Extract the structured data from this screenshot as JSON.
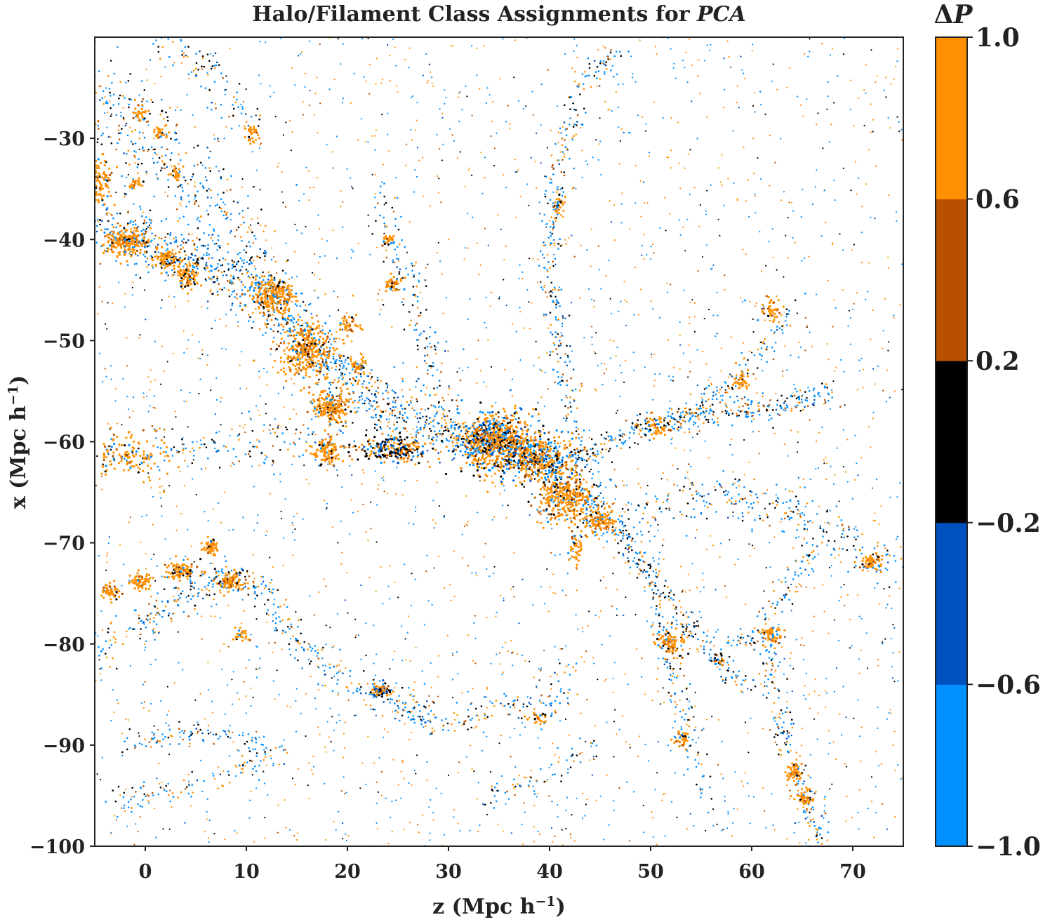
{
  "chart_data": {
    "type": "scatter",
    "title_main": "Halo/Filament Class Assignments for ",
    "title_italic": "PCA",
    "xlabel": "z (Mpc h",
    "xlabel_sup": "−1",
    "xlabel_close": ")",
    "ylabel": "x (Mpc h",
    "ylabel_sup": "−1",
    "ylabel_close": ")",
    "xlim": [
      -5,
      75
    ],
    "ylim": [
      -100,
      -20
    ],
    "xticks": [
      0,
      10,
      20,
      30,
      40,
      50,
      60,
      70
    ],
    "xtick_labels": [
      "0",
      "10",
      "20",
      "30",
      "40",
      "50",
      "60",
      "70"
    ],
    "yticks": [
      -30,
      -40,
      -50,
      -60,
      -70,
      -80,
      -90,
      -100
    ],
    "ytick_labels": [
      "−30",
      "−40",
      "−50",
      "−60",
      "−70",
      "−80",
      "−90",
      "−100"
    ],
    "colorbar": {
      "title_prefix": "Δ",
      "title_var": "P",
      "bounds": [
        -1.0,
        -0.6,
        -0.2,
        0.2,
        0.6,
        1.0
      ],
      "tick_labels": [
        "−1.0",
        "−0.6",
        "−0.2",
        "0.2",
        "0.6",
        "1.0"
      ],
      "colors": [
        "#0090ff",
        "#0050c0",
        "#000000",
        "#b85000",
        "#ff9000"
      ]
    },
    "clusters": [
      {
        "x": 12.5,
        "y": -45.5,
        "sx": 1.3,
        "sy": 1.0,
        "n": 240,
        "mix": "orange"
      },
      {
        "x": 16.0,
        "y": -51.0,
        "sx": 1.8,
        "sy": 1.6,
        "n": 320,
        "mix": "orange"
      },
      {
        "x": 18.5,
        "y": -56.5,
        "sx": 1.2,
        "sy": 1.0,
        "n": 200,
        "mix": "orange"
      },
      {
        "x": 34.5,
        "y": -60.0,
        "sx": 2.4,
        "sy": 1.8,
        "n": 700,
        "mix": "center"
      },
      {
        "x": 39.0,
        "y": -61.5,
        "sx": 2.2,
        "sy": 1.4,
        "n": 350,
        "mix": "center"
      },
      {
        "x": 41.5,
        "y": -65.5,
        "sx": 1.6,
        "sy": 1.6,
        "n": 300,
        "mix": "orange"
      },
      {
        "x": 45.0,
        "y": -67.8,
        "sx": 1.0,
        "sy": 0.7,
        "n": 110,
        "mix": "orange"
      },
      {
        "x": 24.5,
        "y": -60.8,
        "sx": 2.2,
        "sy": 0.8,
        "n": 240,
        "mix": "dark"
      },
      {
        "x": 18.0,
        "y": -61.0,
        "sx": 0.9,
        "sy": 0.8,
        "n": 110,
        "mix": "orange"
      },
      {
        "x": -2.0,
        "y": -40.2,
        "sx": 1.4,
        "sy": 0.8,
        "n": 220,
        "mix": "orange"
      },
      {
        "x": 2.0,
        "y": -42.0,
        "sx": 0.8,
        "sy": 0.7,
        "n": 80,
        "mix": "orange"
      },
      {
        "x": 4.0,
        "y": -43.5,
        "sx": 0.8,
        "sy": 0.8,
        "n": 80,
        "mix": "orange"
      },
      {
        "x": -4.5,
        "y": -34.5,
        "sx": 0.8,
        "sy": 1.5,
        "n": 110,
        "mix": "orange"
      },
      {
        "x": 3.5,
        "y": -72.8,
        "sx": 0.9,
        "sy": 0.6,
        "n": 100,
        "mix": "orange"
      },
      {
        "x": -0.5,
        "y": -73.8,
        "sx": 0.7,
        "sy": 0.6,
        "n": 70,
        "mix": "orange"
      },
      {
        "x": 8.5,
        "y": -73.8,
        "sx": 0.9,
        "sy": 0.6,
        "n": 90,
        "mix": "orange"
      },
      {
        "x": -3.5,
        "y": -74.8,
        "sx": 0.6,
        "sy": 0.5,
        "n": 50,
        "mix": "orange"
      },
      {
        "x": 6.5,
        "y": -70.5,
        "sx": 0.6,
        "sy": 0.6,
        "n": 50,
        "mix": "orange"
      },
      {
        "x": -1.5,
        "y": -61.5,
        "sx": 2.5,
        "sy": 1.5,
        "n": 120,
        "mix": "orange"
      },
      {
        "x": 23.3,
        "y": -84.6,
        "sx": 0.6,
        "sy": 0.4,
        "n": 70,
        "mix": "dark"
      },
      {
        "x": 52.0,
        "y": -79.8,
        "sx": 1.0,
        "sy": 0.8,
        "n": 90,
        "mix": "orange"
      },
      {
        "x": 62.0,
        "y": -79.0,
        "sx": 0.7,
        "sy": 0.5,
        "n": 60,
        "mix": "orange"
      },
      {
        "x": 72.0,
        "y": -71.8,
        "sx": 0.8,
        "sy": 0.6,
        "n": 60,
        "mix": "orange"
      },
      {
        "x": 64.2,
        "y": -92.6,
        "sx": 0.6,
        "sy": 0.5,
        "n": 50,
        "mix": "orange"
      },
      {
        "x": 65.3,
        "y": -95.2,
        "sx": 0.5,
        "sy": 0.5,
        "n": 40,
        "mix": "orange"
      },
      {
        "x": 50.5,
        "y": -58.5,
        "sx": 0.8,
        "sy": 0.6,
        "n": 50,
        "mix": "orange"
      },
      {
        "x": 62.0,
        "y": -47.0,
        "sx": 0.6,
        "sy": 0.6,
        "n": 40,
        "mix": "orange"
      },
      {
        "x": 59.0,
        "y": -54.0,
        "sx": 0.5,
        "sy": 0.5,
        "n": 30,
        "mix": "orange"
      },
      {
        "x": 24.5,
        "y": -44.5,
        "sx": 0.5,
        "sy": 0.5,
        "n": 40,
        "mix": "orange"
      },
      {
        "x": 24.0,
        "y": -40.0,
        "sx": 0.4,
        "sy": 0.4,
        "n": 25,
        "mix": "orange"
      },
      {
        "x": 41.0,
        "y": -36.5,
        "sx": 0.4,
        "sy": 0.6,
        "n": 30,
        "mix": "orange"
      },
      {
        "x": -0.5,
        "y": -27.5,
        "sx": 0.5,
        "sy": 0.5,
        "n": 30,
        "mix": "orange"
      },
      {
        "x": 1.5,
        "y": -29.5,
        "sx": 0.5,
        "sy": 0.5,
        "n": 30,
        "mix": "orange"
      },
      {
        "x": 10.5,
        "y": -29.5,
        "sx": 0.5,
        "sy": 0.5,
        "n": 30,
        "mix": "orange"
      },
      {
        "x": 53.0,
        "y": -89.5,
        "sx": 0.5,
        "sy": 0.5,
        "n": 30,
        "mix": "orange"
      },
      {
        "x": 42.5,
        "y": -70.5,
        "sx": 0.4,
        "sy": 0.8,
        "n": 40,
        "mix": "orange"
      },
      {
        "x": 20.0,
        "y": -48.5,
        "sx": 0.7,
        "sy": 0.5,
        "n": 40,
        "mix": "orange"
      },
      {
        "x": 21.0,
        "y": -52.5,
        "sx": 0.6,
        "sy": 0.5,
        "n": 40,
        "mix": "orange"
      },
      {
        "x": 9.5,
        "y": -79.0,
        "sx": 0.5,
        "sy": 0.5,
        "n": 30,
        "mix": "orange"
      },
      {
        "x": 3.0,
        "y": -33.5,
        "sx": 0.5,
        "sy": 0.5,
        "n": 25,
        "mix": "orange"
      },
      {
        "x": -1.0,
        "y": -34.5,
        "sx": 0.5,
        "sy": 0.4,
        "n": 25,
        "mix": "orange"
      },
      {
        "x": 39.0,
        "y": -87.3,
        "sx": 0.5,
        "sy": 0.4,
        "n": 25,
        "mix": "orange"
      },
      {
        "x": 56.8,
        "y": -81.5,
        "sx": 0.4,
        "sy": 0.3,
        "n": 20,
        "mix": "dark"
      }
    ],
    "filaments": [
      {
        "pts": [
          [
            -5,
            -38
          ],
          [
            5,
            -42
          ],
          [
            11,
            -45
          ],
          [
            18,
            -52
          ],
          [
            24,
            -57
          ],
          [
            30,
            -59
          ],
          [
            38,
            -61
          ],
          [
            42,
            -64
          ],
          [
            46,
            -68
          ]
        ],
        "n": 1400,
        "w": 1.3,
        "mix": "blue"
      },
      {
        "pts": [
          [
            -5,
            -25
          ],
          [
            3,
            -33
          ],
          [
            8,
            -38
          ],
          [
            12,
            -45
          ]
        ],
        "n": 350,
        "w": 1.8,
        "mix": "blue"
      },
      {
        "pts": [
          [
            43,
            -62
          ],
          [
            50,
            -58
          ],
          [
            56,
            -57.5
          ],
          [
            63,
            -56.5
          ],
          [
            68,
            -55
          ]
        ],
        "n": 350,
        "w": 0.7,
        "mix": "blue"
      },
      {
        "pts": [
          [
            53,
            -58
          ],
          [
            58,
            -54
          ],
          [
            62,
            -50
          ],
          [
            64,
            -46
          ]
        ],
        "n": 120,
        "w": 0.6,
        "mix": "blue"
      },
      {
        "pts": [
          [
            43,
            -62
          ],
          [
            41,
            -52
          ],
          [
            40,
            -40
          ],
          [
            41,
            -32
          ],
          [
            43,
            -25
          ],
          [
            47,
            -21
          ]
        ],
        "n": 300,
        "w": 0.6,
        "mix": "blue"
      },
      {
        "pts": [
          [
            30,
            -59
          ],
          [
            28,
            -50
          ],
          [
            25,
            -42
          ],
          [
            24,
            -35
          ]
        ],
        "n": 150,
        "w": 0.9,
        "mix": "blue"
      },
      {
        "pts": [
          [
            44,
            -66
          ],
          [
            48,
            -70
          ],
          [
            52,
            -76
          ],
          [
            56,
            -81
          ],
          [
            60,
            -85
          ]
        ],
        "n": 200,
        "w": 0.6,
        "mix": "blue"
      },
      {
        "pts": [
          [
            46,
            -68
          ],
          [
            50,
            -74
          ],
          [
            52,
            -80
          ],
          [
            53,
            -88
          ],
          [
            56,
            -96
          ]
        ],
        "n": 160,
        "w": 0.6,
        "mix": "blue"
      },
      {
        "pts": [
          [
            56,
            -81
          ],
          [
            60,
            -79
          ],
          [
            63,
            -76
          ],
          [
            66,
            -70
          ]
        ],
        "n": 100,
        "w": 0.6,
        "mix": "blue"
      },
      {
        "pts": [
          [
            48,
            -68
          ],
          [
            56,
            -65
          ],
          [
            64,
            -67
          ],
          [
            70,
            -70
          ],
          [
            75,
            -72
          ]
        ],
        "n": 260,
        "w": 1.2,
        "mix": "blue"
      },
      {
        "pts": [
          [
            61,
            -79
          ],
          [
            63,
            -88
          ],
          [
            65,
            -94
          ],
          [
            67,
            -100
          ]
        ],
        "n": 180,
        "w": 0.6,
        "mix": "blue"
      },
      {
        "pts": [
          [
            -5,
            -81
          ],
          [
            3,
            -76
          ],
          [
            8,
            -73
          ],
          [
            12,
            -75
          ]
        ],
        "n": 220,
        "w": 0.9,
        "mix": "blue"
      },
      {
        "pts": [
          [
            12,
            -75
          ],
          [
            17,
            -82
          ],
          [
            21,
            -84
          ],
          [
            24,
            -85
          ],
          [
            28,
            -88
          ]
        ],
        "n": 160,
        "w": 0.8,
        "mix": "blue"
      },
      {
        "pts": [
          [
            24,
            -85
          ],
          [
            30,
            -88
          ],
          [
            36,
            -86
          ],
          [
            40,
            -87
          ],
          [
            42,
            -82
          ]
        ],
        "n": 150,
        "w": 0.9,
        "mix": "blue"
      },
      {
        "pts": [
          [
            -4,
            -96
          ],
          [
            5,
            -94
          ],
          [
            10,
            -92
          ],
          [
            14,
            -90
          ]
        ],
        "n": 100,
        "w": 0.8,
        "mix": "blue"
      },
      {
        "pts": [
          [
            -2,
            -90
          ],
          [
            4,
            -89
          ],
          [
            8,
            -89
          ],
          [
            12,
            -90
          ]
        ],
        "n": 90,
        "w": 0.5,
        "mix": "blue"
      },
      {
        "pts": [
          [
            34,
            -95
          ],
          [
            40,
            -93
          ],
          [
            44,
            -90
          ]
        ],
        "n": 60,
        "w": 0.7,
        "mix": "blue"
      },
      {
        "pts": [
          [
            20,
            -60
          ],
          [
            10,
            -60
          ],
          [
            0,
            -61
          ],
          [
            -5,
            -61
          ]
        ],
        "n": 160,
        "w": 1.2,
        "mix": "blue"
      },
      {
        "pts": [
          [
            10,
            -29
          ],
          [
            8,
            -26
          ],
          [
            5,
            -22
          ],
          [
            2,
            -20
          ]
        ],
        "n": 90,
        "w": 1.0,
        "mix": "blue"
      }
    ],
    "background_points": 2800
  }
}
